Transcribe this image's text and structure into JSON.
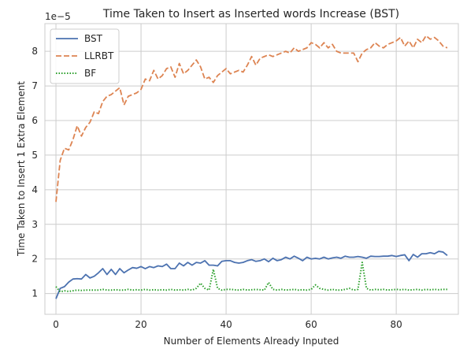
{
  "chart_data": {
    "type": "line",
    "title": "Time Taken to Insert as Inserted words Increase (BST)",
    "xlabel": "Number of Elements Already Inputed",
    "ylabel": "Time Taken to Insert 1 Extra Element",
    "y_offset_label": "1e−5",
    "xlim": [
      -2.6,
      94.6
    ],
    "ylim": [
      0.4,
      8.8
    ],
    "x_ticks": [
      0,
      20,
      40,
      60,
      80
    ],
    "x_tick_labels": [
      "0",
      "20",
      "40",
      "60",
      "80"
    ],
    "y_ticks": [
      1,
      2,
      3,
      4,
      5,
      6,
      7,
      8
    ],
    "y_tick_labels": [
      "1",
      "2",
      "3",
      "4",
      "5",
      "6",
      "7",
      "8"
    ],
    "grid": true,
    "legend_position": "top-left",
    "x": [
      0,
      1,
      2,
      3,
      4,
      5,
      6,
      7,
      8,
      9,
      10,
      11,
      12,
      13,
      14,
      15,
      16,
      17,
      18,
      19,
      20,
      21,
      22,
      23,
      24,
      25,
      26,
      27,
      28,
      29,
      30,
      31,
      32,
      33,
      34,
      35,
      36,
      37,
      38,
      39,
      40,
      41,
      42,
      43,
      44,
      45,
      46,
      47,
      48,
      49,
      50,
      51,
      52,
      53,
      54,
      55,
      56,
      57,
      58,
      59,
      60,
      61,
      62,
      63,
      64,
      65,
      66,
      67,
      68,
      69,
      70,
      71,
      72,
      73,
      74,
      75,
      76,
      77,
      78,
      79,
      80,
      81,
      82,
      83,
      84,
      85,
      86,
      87,
      88,
      89,
      90,
      91,
      92
    ],
    "series": [
      {
        "name": "BST",
        "color": "#4c72b0",
        "dash": "solid",
        "values": [
          0.85,
          1.15,
          1.2,
          1.33,
          1.42,
          1.43,
          1.42,
          1.55,
          1.45,
          1.5,
          1.6,
          1.72,
          1.55,
          1.7,
          1.55,
          1.72,
          1.6,
          1.68,
          1.75,
          1.73,
          1.78,
          1.72,
          1.78,
          1.75,
          1.8,
          1.78,
          1.85,
          1.72,
          1.72,
          1.88,
          1.8,
          1.9,
          1.82,
          1.9,
          1.88,
          1.95,
          1.82,
          1.82,
          1.8,
          1.93,
          1.95,
          1.95,
          1.9,
          1.88,
          1.9,
          1.95,
          1.98,
          1.93,
          1.95,
          2.0,
          1.92,
          2.02,
          1.95,
          1.98,
          2.05,
          2.0,
          2.08,
          2.02,
          1.95,
          2.05,
          2.0,
          2.02,
          2.0,
          2.05,
          2.0,
          2.03,
          2.05,
          2.02,
          2.08,
          2.05,
          2.05,
          2.07,
          2.05,
          2.02,
          2.08,
          2.07,
          2.07,
          2.08,
          2.08,
          2.1,
          2.07,
          2.1,
          2.12,
          1.95,
          2.13,
          2.05,
          2.15,
          2.15,
          2.18,
          2.15,
          2.22,
          2.2,
          2.1
        ]
      },
      {
        "name": "LLRBT",
        "color": "#dd8452",
        "dash": "dashed",
        "values": [
          3.65,
          4.85,
          5.2,
          5.15,
          5.45,
          5.85,
          5.55,
          5.8,
          5.95,
          6.25,
          6.2,
          6.55,
          6.7,
          6.75,
          6.85,
          6.95,
          6.45,
          6.7,
          6.75,
          6.8,
          6.9,
          7.2,
          7.15,
          7.45,
          7.2,
          7.3,
          7.5,
          7.55,
          7.25,
          7.65,
          7.35,
          7.45,
          7.6,
          7.75,
          7.55,
          7.2,
          7.25,
          7.1,
          7.3,
          7.4,
          7.5,
          7.35,
          7.4,
          7.45,
          7.4,
          7.6,
          7.85,
          7.6,
          7.8,
          7.85,
          7.9,
          7.85,
          7.9,
          7.95,
          8.0,
          7.95,
          8.1,
          8.0,
          8.05,
          8.1,
          8.25,
          8.2,
          8.1,
          8.25,
          8.1,
          8.2,
          8.0,
          7.95,
          7.95,
          7.95,
          7.95,
          7.7,
          7.95,
          8.05,
          8.1,
          8.25,
          8.15,
          8.1,
          8.2,
          8.25,
          8.3,
          8.4,
          8.15,
          8.3,
          8.1,
          8.35,
          8.25,
          8.45,
          8.35,
          8.4,
          8.3,
          8.15,
          8.1
        ]
      },
      {
        "name": "BF",
        "color": "#2ca02c",
        "dash": "dotted",
        "values": [
          1.2,
          1.05,
          1.08,
          1.06,
          1.08,
          1.1,
          1.09,
          1.1,
          1.1,
          1.1,
          1.1,
          1.12,
          1.1,
          1.1,
          1.11,
          1.1,
          1.1,
          1.12,
          1.1,
          1.11,
          1.1,
          1.12,
          1.1,
          1.11,
          1.1,
          1.11,
          1.1,
          1.12,
          1.1,
          1.11,
          1.1,
          1.12,
          1.1,
          1.15,
          1.3,
          1.15,
          1.1,
          1.7,
          1.15,
          1.1,
          1.12,
          1.12,
          1.11,
          1.1,
          1.12,
          1.1,
          1.11,
          1.12,
          1.11,
          1.1,
          1.32,
          1.12,
          1.1,
          1.12,
          1.1,
          1.11,
          1.12,
          1.1,
          1.11,
          1.1,
          1.12,
          1.25,
          1.15,
          1.12,
          1.1,
          1.12,
          1.1,
          1.1,
          1.12,
          1.15,
          1.1,
          1.12,
          1.9,
          1.15,
          1.1,
          1.12,
          1.11,
          1.12,
          1.1,
          1.11,
          1.12,
          1.11,
          1.12,
          1.1,
          1.11,
          1.12,
          1.1,
          1.12,
          1.11,
          1.12,
          1.11,
          1.12,
          1.12
        ]
      }
    ]
  }
}
